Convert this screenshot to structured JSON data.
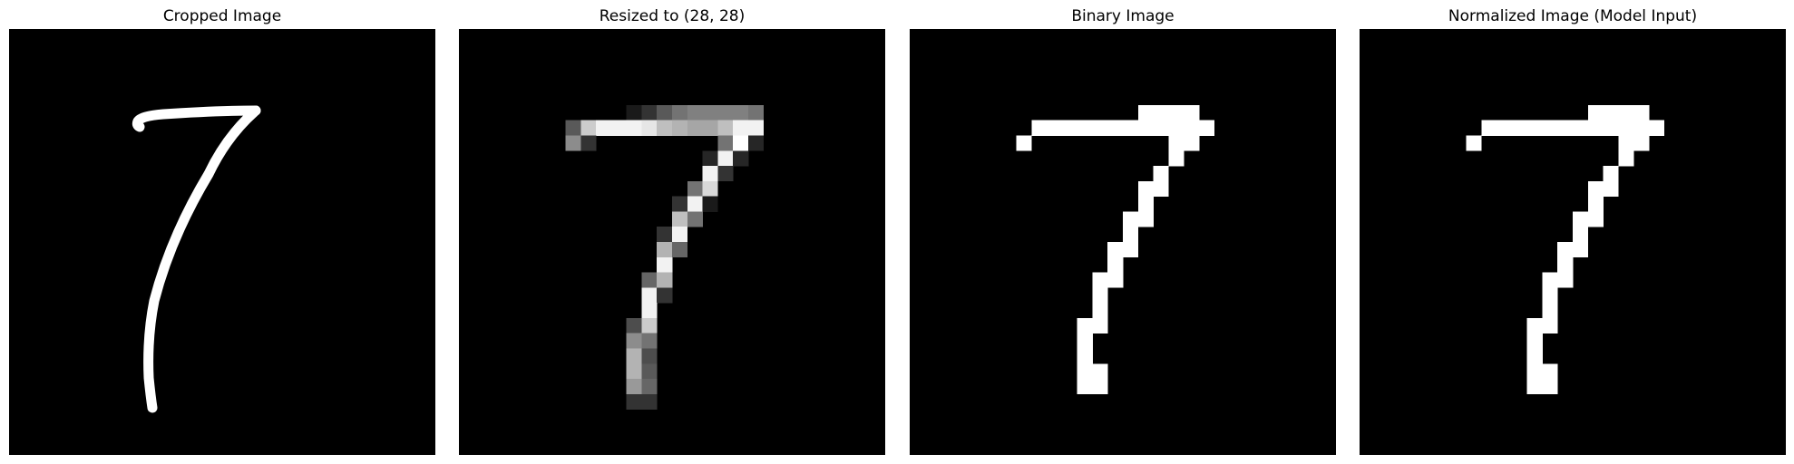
{
  "figure": {
    "background_color": "#ffffff",
    "image_background_color": "#000000",
    "panels": [
      {
        "title": "Cropped Image",
        "kind": "smooth_stroke"
      },
      {
        "title": "Resized to (28, 28)",
        "kind": "pixel_grid"
      },
      {
        "title": "Binary Image",
        "kind": "pixel_grid"
      },
      {
        "title": "Normalized Image (Model Input)",
        "kind": "pixel_grid"
      }
    ]
  },
  "digit": {
    "depicted_digit": "7",
    "stroke_color": "#ffffff",
    "grid_size": 28,
    "grayscale_cells": [
      {
        "row": 5,
        "col": 11,
        "value": 0.1
      },
      {
        "row": 5,
        "col": 12,
        "value": 0.2
      },
      {
        "row": 5,
        "col": 13,
        "value": 0.35
      },
      {
        "row": 5,
        "col": 14,
        "value": 0.45
      },
      {
        "row": 5,
        "col": 15,
        "value": 0.5
      },
      {
        "row": 5,
        "col": 16,
        "value": 0.5
      },
      {
        "row": 5,
        "col": 17,
        "value": 0.5
      },
      {
        "row": 5,
        "col": 18,
        "value": 0.5
      },
      {
        "row": 5,
        "col": 19,
        "value": 0.45
      },
      {
        "row": 6,
        "col": 7,
        "value": 0.35
      },
      {
        "row": 6,
        "col": 8,
        "value": 0.8
      },
      {
        "row": 6,
        "col": 9,
        "value": 0.95
      },
      {
        "row": 6,
        "col": 10,
        "value": 0.95
      },
      {
        "row": 6,
        "col": 11,
        "value": 0.95
      },
      {
        "row": 6,
        "col": 12,
        "value": 0.9
      },
      {
        "row": 6,
        "col": 13,
        "value": 0.75
      },
      {
        "row": 6,
        "col": 14,
        "value": 0.7
      },
      {
        "row": 6,
        "col": 15,
        "value": 0.65
      },
      {
        "row": 6,
        "col": 16,
        "value": 0.65
      },
      {
        "row": 6,
        "col": 17,
        "value": 0.75
      },
      {
        "row": 6,
        "col": 18,
        "value": 0.95
      },
      {
        "row": 6,
        "col": 19,
        "value": 0.95
      },
      {
        "row": 7,
        "col": 7,
        "value": 0.55
      },
      {
        "row": 7,
        "col": 8,
        "value": 0.2
      },
      {
        "row": 7,
        "col": 17,
        "value": 0.45
      },
      {
        "row": 7,
        "col": 18,
        "value": 1.0
      },
      {
        "row": 7,
        "col": 19,
        "value": 0.15
      },
      {
        "row": 8,
        "col": 16,
        "value": 0.15
      },
      {
        "row": 8,
        "col": 17,
        "value": 0.95
      },
      {
        "row": 8,
        "col": 18,
        "value": 0.15
      },
      {
        "row": 9,
        "col": 16,
        "value": 0.95
      },
      {
        "row": 9,
        "col": 17,
        "value": 0.2
      },
      {
        "row": 10,
        "col": 15,
        "value": 0.45
      },
      {
        "row": 10,
        "col": 16,
        "value": 0.85
      },
      {
        "row": 11,
        "col": 14,
        "value": 0.2
      },
      {
        "row": 11,
        "col": 15,
        "value": 0.95
      },
      {
        "row": 11,
        "col": 16,
        "value": 0.1
      },
      {
        "row": 12,
        "col": 14,
        "value": 0.75
      },
      {
        "row": 12,
        "col": 15,
        "value": 0.45
      },
      {
        "row": 13,
        "col": 13,
        "value": 0.2
      },
      {
        "row": 13,
        "col": 14,
        "value": 0.95
      },
      {
        "row": 14,
        "col": 13,
        "value": 0.7
      },
      {
        "row": 14,
        "col": 14,
        "value": 0.4
      },
      {
        "row": 15,
        "col": 13,
        "value": 0.95
      },
      {
        "row": 16,
        "col": 12,
        "value": 0.4
      },
      {
        "row": 16,
        "col": 13,
        "value": 0.7
      },
      {
        "row": 17,
        "col": 12,
        "value": 0.95
      },
      {
        "row": 17,
        "col": 13,
        "value": 0.2
      },
      {
        "row": 18,
        "col": 12,
        "value": 0.95
      },
      {
        "row": 19,
        "col": 11,
        "value": 0.3
      },
      {
        "row": 19,
        "col": 12,
        "value": 0.8
      },
      {
        "row": 20,
        "col": 11,
        "value": 0.55
      },
      {
        "row": 20,
        "col": 12,
        "value": 0.45
      },
      {
        "row": 21,
        "col": 11,
        "value": 0.7
      },
      {
        "row": 21,
        "col": 12,
        "value": 0.3
      },
      {
        "row": 22,
        "col": 11,
        "value": 0.7
      },
      {
        "row": 22,
        "col": 12,
        "value": 0.35
      },
      {
        "row": 23,
        "col": 11,
        "value": 0.6
      },
      {
        "row": 23,
        "col": 12,
        "value": 0.4
      },
      {
        "row": 24,
        "col": 11,
        "value": 0.2
      },
      {
        "row": 24,
        "col": 12,
        "value": 0.2
      }
    ],
    "binary_cells": [
      [
        5,
        15
      ],
      [
        5,
        16
      ],
      [
        5,
        17
      ],
      [
        5,
        18
      ],
      [
        6,
        8
      ],
      [
        6,
        9
      ],
      [
        6,
        10
      ],
      [
        6,
        11
      ],
      [
        6,
        12
      ],
      [
        6,
        13
      ],
      [
        6,
        14
      ],
      [
        6,
        15
      ],
      [
        6,
        16
      ],
      [
        6,
        17
      ],
      [
        6,
        18
      ],
      [
        6,
        19
      ],
      [
        7,
        7
      ],
      [
        7,
        17
      ],
      [
        7,
        18
      ],
      [
        8,
        17
      ],
      [
        9,
        16
      ],
      [
        10,
        15
      ],
      [
        10,
        16
      ],
      [
        11,
        15
      ],
      [
        12,
        14
      ],
      [
        12,
        15
      ],
      [
        13,
        14
      ],
      [
        14,
        13
      ],
      [
        14,
        14
      ],
      [
        15,
        13
      ],
      [
        16,
        12
      ],
      [
        16,
        13
      ],
      [
        17,
        12
      ],
      [
        18,
        12
      ],
      [
        19,
        11
      ],
      [
        19,
        12
      ],
      [
        20,
        11
      ],
      [
        21,
        11
      ],
      [
        22,
        11
      ],
      [
        22,
        12
      ],
      [
        23,
        11
      ],
      [
        23,
        12
      ]
    ],
    "normalized_cells_same_as_binary": true
  }
}
